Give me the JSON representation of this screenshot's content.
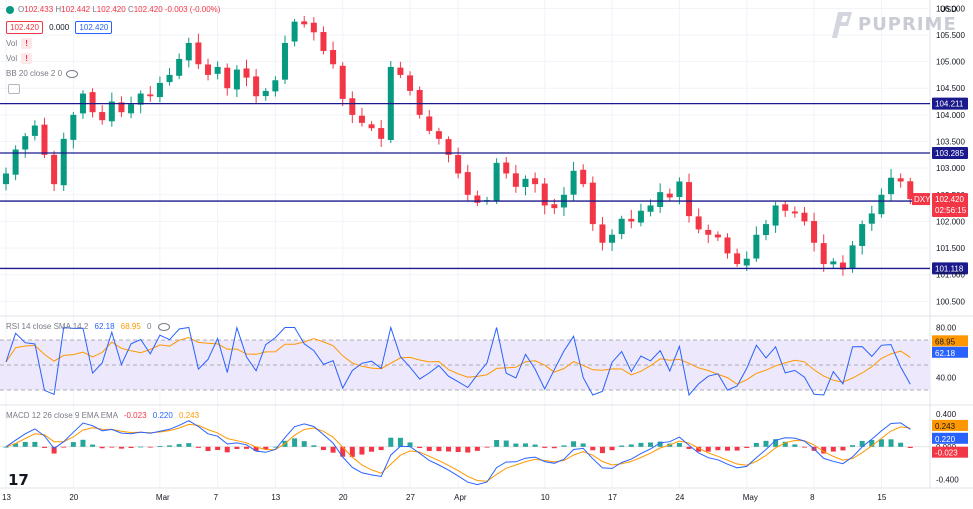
{
  "header": {
    "ohlc": {
      "open": "102.433",
      "high": "102.442",
      "low": "102.420",
      "close": "102.420",
      "change": "-0.003 (-0.00%)"
    },
    "bid": "102.420",
    "spread": "0.000",
    "ask": "102.420",
    "vol_label_1": "Vol",
    "vol_label_2": "Vol",
    "bb_label": "BB 20 close 2 0",
    "currency": "USD"
  },
  "brand": {
    "name": "PUPRIME"
  },
  "watermark": "17",
  "colors": {
    "up": "#089981",
    "down": "#f23645",
    "level_line": "#1b1a8c",
    "rsi": "#2962ff",
    "rsi_sma": "#ff9800",
    "rsi_band": "#ede8fb",
    "macd": "#2962ff",
    "signal": "#ff9800",
    "hist_up": "#26a69a",
    "hist_down": "#f23645",
    "grid": "#f0f3fa"
  },
  "x_axis": {
    "ticks": [
      "13",
      "20",
      "Mar",
      "7",
      "13",
      "20",
      "27",
      "Apr",
      "10",
      "17",
      "24",
      "May",
      "8",
      "15"
    ]
  },
  "price_axis": {
    "ticks": [
      "106.000",
      "105.500",
      "105.000",
      "104.500",
      "104.000",
      "103.500",
      "103.000",
      "102.500",
      "102.000",
      "101.500",
      "101.000",
      "100.500"
    ]
  },
  "levels": [
    {
      "value": 104.211,
      "label": "104.211"
    },
    {
      "value": 103.285,
      "label": "103.285"
    },
    {
      "value": 102.382,
      "label": "102.382"
    },
    {
      "value": 101.118,
      "label": "101.118"
    }
  ],
  "current": {
    "symbol": "DXY",
    "price": "102.420",
    "countdown": "02:56:15"
  },
  "rsi": {
    "label": "RSI 14 close SMA 14 2",
    "value": "62.18",
    "sma": "68.95",
    "extra": "0",
    "ticks": [
      "80.00",
      "40.00"
    ],
    "band": [
      30,
      70
    ]
  },
  "macd": {
    "label": "MACD 12 26 close 9 EMA EMA",
    "hist": "-0.023",
    "macd": "0.220",
    "signal": "0.243",
    "ticks": [
      "0.400",
      "0.000",
      "-0.400"
    ]
  },
  "chart_data": {
    "type": "candlestick",
    "ylim": [
      100.3,
      106.1
    ],
    "x_tick_index": {
      "13": 0,
      "20": 7,
      "Mar": 16,
      "7": 22,
      "13b": 28,
      "20b": 35,
      "27": 42,
      "Apr": 47,
      "10": 56,
      "17": 63,
      "24": 70,
      "May": 77,
      "8": 84,
      "15": 91
    },
    "closes": [
      102.9,
      103.35,
      103.6,
      103.8,
      103.25,
      102.7,
      103.55,
      104.0,
      104.4,
      104.05,
      103.9,
      104.25,
      104.05,
      104.2,
      104.4,
      104.35,
      104.6,
      104.75,
      105.05,
      105.35,
      104.95,
      104.75,
      104.9,
      104.5,
      104.85,
      104.7,
      104.35,
      104.45,
      104.65,
      105.35,
      105.75,
      105.7,
      105.55,
      105.2,
      104.95,
      104.3,
      104.0,
      103.85,
      103.75,
      103.55,
      104.9,
      104.75,
      104.45,
      104.0,
      103.7,
      103.55,
      103.25,
      102.9,
      102.5,
      102.35,
      102.4,
      103.1,
      102.9,
      102.65,
      102.8,
      102.7,
      102.3,
      102.25,
      102.5,
      102.95,
      102.7,
      101.95,
      101.6,
      101.75,
      102.05,
      102.0,
      102.2,
      102.3,
      102.55,
      102.45,
      102.75,
      102.1,
      101.85,
      101.75,
      101.7,
      101.4,
      101.2,
      101.3,
      101.75,
      101.95,
      102.3,
      102.2,
      102.15,
      102.0,
      101.6,
      101.2,
      101.25,
      101.1,
      101.55,
      101.95,
      102.15,
      102.5,
      102.82,
      102.75,
      102.42
    ]
  }
}
